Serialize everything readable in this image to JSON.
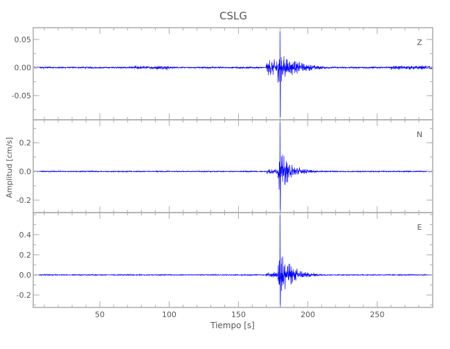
{
  "chart_data": {
    "type": "line",
    "title": "CSLG",
    "xlabel": "Tiempo [s]",
    "ylabel": "Amplitud [cm/s]",
    "xlim": [
      2,
      290
    ],
    "xticks": [
      50,
      100,
      150,
      200,
      250
    ],
    "grid": false,
    "line_color": "#0000ff",
    "axis_color": "#aaaaaa",
    "event_onset_s": 170,
    "peak_time_s": 180,
    "series": [
      {
        "name": "Z",
        "ylim": [
          -0.093,
          0.071
        ],
        "yticks": [
          -0.05,
          0.0,
          0.05
        ],
        "tick_labels": [
          "-0.05",
          "0.00",
          "0.05"
        ],
        "minor_step": 0.025,
        "peak_max": 0.065,
        "peak_min": -0.088,
        "onset_amp": 0.015,
        "noise": 0.0012
      },
      {
        "name": "N",
        "ylim": [
          -0.287,
          0.36
        ],
        "yticks": [
          -0.2,
          0.0,
          0.2
        ],
        "tick_labels": [
          "-0.2",
          "0.0",
          "0.2"
        ],
        "minor_step": 0.1,
        "peak_max": 0.36,
        "peak_min": -0.28,
        "onset_amp": 0.02,
        "noise": 0.003
      },
      {
        "name": "E",
        "ylim": [
          -0.324,
          0.62
        ],
        "yticks": [
          -0.2,
          0.0,
          0.2,
          0.4
        ],
        "tick_labels": [
          "-0.2",
          "0.0",
          "0.2",
          "0.4"
        ],
        "minor_step": 0.1,
        "peak_max": 0.62,
        "peak_min": -0.32,
        "onset_amp": 0.03,
        "noise": 0.004
      }
    ]
  }
}
